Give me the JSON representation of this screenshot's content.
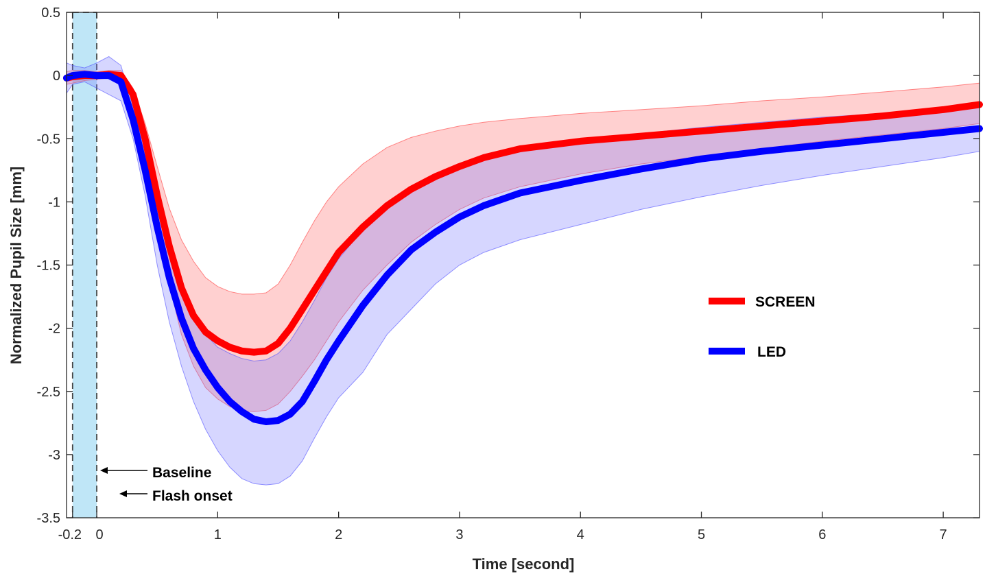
{
  "chart_data": {
    "type": "line",
    "xlabel": "Time [second]",
    "ylabel": "Normalized Pupil Size [mm]",
    "xlim": [
      -0.25,
      7.3
    ],
    "ylim": [
      -3.5,
      0.5
    ],
    "x_ticks": [
      -0.2,
      0,
      1,
      2,
      3,
      4,
      5,
      6,
      7
    ],
    "x_tick_labels": [
      "-0.2",
      "0",
      "1",
      "2",
      "3",
      "4",
      "5",
      "6",
      "7"
    ],
    "y_ticks": [
      0.5,
      0,
      -0.5,
      -1,
      -1.5,
      -2,
      -2.5,
      -3,
      -3.5
    ],
    "y_tick_labels": [
      "0.5",
      "0",
      "-0.5",
      "-1",
      "-1.5",
      "-2",
      "-2.5",
      "-3",
      "-3.5"
    ],
    "grid": false,
    "legend_position": "center-right",
    "baseline_window": {
      "x": [
        -0.2,
        0.0
      ],
      "color": "#bfe6f7"
    },
    "annotations": [
      {
        "text": "Baseline",
        "at_x": -0.1,
        "at_y": -3.13
      },
      {
        "text": "Flash onset",
        "at_x": 0.0,
        "at_y": -3.27
      }
    ],
    "series": [
      {
        "name": "SCREEN",
        "color": "#ff0000",
        "x": [
          -0.25,
          -0.2,
          -0.1,
          0.0,
          0.1,
          0.2,
          0.3,
          0.4,
          0.5,
          0.6,
          0.7,
          0.8,
          0.9,
          1.0,
          1.1,
          1.2,
          1.3,
          1.4,
          1.5,
          1.6,
          1.7,
          1.8,
          1.9,
          2.0,
          2.2,
          2.4,
          2.6,
          2.8,
          3.0,
          3.2,
          3.5,
          4.0,
          4.5,
          5.0,
          5.5,
          6.0,
          6.5,
          7.0,
          7.3
        ],
        "mean": [
          -0.02,
          -0.01,
          0.0,
          0.0,
          0.01,
          0.0,
          -0.15,
          -0.5,
          -0.95,
          -1.35,
          -1.68,
          -1.9,
          -2.03,
          -2.1,
          -2.15,
          -2.18,
          -2.19,
          -2.18,
          -2.12,
          -2.0,
          -1.85,
          -1.7,
          -1.55,
          -1.4,
          -1.2,
          -1.03,
          -0.9,
          -0.8,
          -0.72,
          -0.65,
          -0.58,
          -0.52,
          -0.48,
          -0.44,
          -0.4,
          -0.36,
          -0.32,
          -0.27,
          -0.23
        ],
        "upper": [
          0.03,
          0.04,
          0.04,
          0.03,
          0.04,
          0.04,
          -0.1,
          -0.38,
          -0.72,
          -1.05,
          -1.3,
          -1.47,
          -1.6,
          -1.67,
          -1.71,
          -1.73,
          -1.73,
          -1.72,
          -1.65,
          -1.5,
          -1.32,
          -1.15,
          -1.0,
          -0.88,
          -0.7,
          -0.57,
          -0.49,
          -0.44,
          -0.4,
          -0.37,
          -0.34,
          -0.3,
          -0.27,
          -0.24,
          -0.2,
          -0.17,
          -0.13,
          -0.09,
          -0.06
        ],
        "lower": [
          -0.07,
          -0.06,
          -0.04,
          -0.03,
          -0.02,
          -0.04,
          -0.2,
          -0.62,
          -1.18,
          -1.65,
          -2.05,
          -2.3,
          -2.47,
          -2.56,
          -2.62,
          -2.65,
          -2.66,
          -2.65,
          -2.6,
          -2.5,
          -2.38,
          -2.25,
          -2.1,
          -1.95,
          -1.7,
          -1.5,
          -1.32,
          -1.18,
          -1.06,
          -0.97,
          -0.88,
          -0.78,
          -0.7,
          -0.64,
          -0.58,
          -0.52,
          -0.47,
          -0.42,
          -0.38
        ]
      },
      {
        "name": "LED",
        "color": "#0000ff",
        "x": [
          -0.25,
          -0.2,
          -0.1,
          0.0,
          0.1,
          0.2,
          0.3,
          0.4,
          0.5,
          0.6,
          0.7,
          0.8,
          0.9,
          1.0,
          1.1,
          1.2,
          1.3,
          1.4,
          1.5,
          1.6,
          1.7,
          1.8,
          1.9,
          2.0,
          2.2,
          2.4,
          2.6,
          2.8,
          3.0,
          3.2,
          3.5,
          4.0,
          4.5,
          5.0,
          5.5,
          6.0,
          6.5,
          7.0,
          7.3
        ],
        "mean": [
          -0.02,
          0.0,
          0.01,
          0.0,
          0.0,
          -0.05,
          -0.35,
          -0.75,
          -1.2,
          -1.6,
          -1.92,
          -2.16,
          -2.33,
          -2.47,
          -2.58,
          -2.66,
          -2.72,
          -2.74,
          -2.73,
          -2.68,
          -2.58,
          -2.42,
          -2.25,
          -2.1,
          -1.82,
          -1.58,
          -1.38,
          -1.24,
          -1.12,
          -1.03,
          -0.93,
          -0.83,
          -0.74,
          -0.66,
          -0.6,
          -0.55,
          -0.5,
          -0.45,
          -0.42
        ],
        "upper": [
          0.1,
          0.08,
          0.06,
          0.1,
          0.15,
          0.08,
          -0.25,
          -0.6,
          -0.98,
          -1.35,
          -1.68,
          -1.9,
          -2.05,
          -2.15,
          -2.2,
          -2.24,
          -2.26,
          -2.25,
          -2.2,
          -2.1,
          -1.95,
          -1.78,
          -1.6,
          -1.45,
          -1.22,
          -1.03,
          -0.9,
          -0.8,
          -0.72,
          -0.65,
          -0.58,
          -0.52,
          -0.46,
          -0.41,
          -0.37,
          -0.33,
          -0.3,
          -0.27,
          -0.24
        ],
        "lower": [
          -0.14,
          -0.07,
          -0.05,
          -0.1,
          -0.15,
          -0.2,
          -0.5,
          -0.95,
          -1.5,
          -1.95,
          -2.3,
          -2.58,
          -2.8,
          -2.97,
          -3.1,
          -3.19,
          -3.23,
          -3.24,
          -3.23,
          -3.17,
          -3.05,
          -2.87,
          -2.7,
          -2.55,
          -2.35,
          -2.05,
          -1.85,
          -1.65,
          -1.5,
          -1.4,
          -1.3,
          -1.18,
          -1.06,
          -0.96,
          -0.87,
          -0.79,
          -0.72,
          -0.65,
          -0.6
        ]
      }
    ]
  }
}
